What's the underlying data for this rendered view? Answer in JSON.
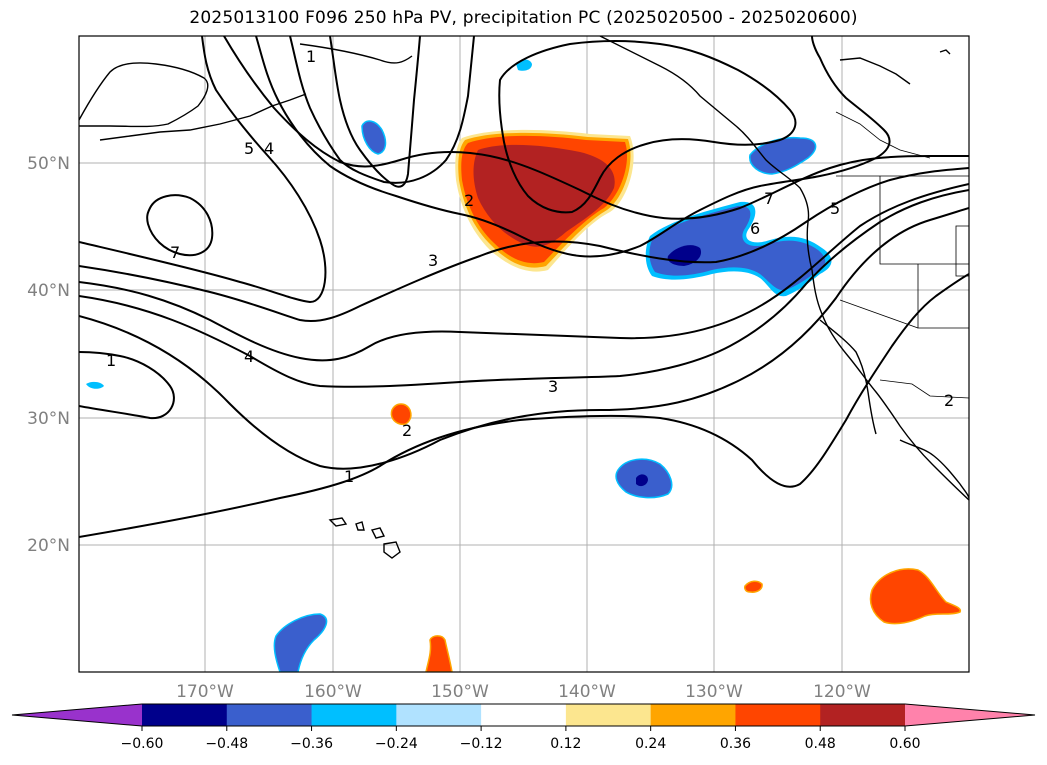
{
  "title": "2025013100 F096 250 hPa PV, precipitation PC (2025020500 - 2025020600)",
  "lat_labels": [
    "50°N",
    "40°N",
    "30°N",
    "20°N"
  ],
  "lon_labels": [
    "170°W",
    "160°W",
    "150°W",
    "140°W",
    "130°W",
    "120°W"
  ],
  "contour_labels": [
    "1",
    "5",
    "4",
    "7",
    "2",
    "3",
    "4",
    "1",
    "3",
    "2",
    "1",
    "7",
    "6",
    "5",
    "2"
  ],
  "colorbar": {
    "colors": [
      "#9932cc",
      "#00008b",
      "#3a5fcd",
      "#00bfff",
      "#b0e2ff",
      "#ffffff",
      "#fce68f",
      "#ffa500",
      "#ff4500",
      "#b22222",
      "#ff82ab"
    ],
    "tick_labels": [
      "−0.60",
      "−0.48",
      "−0.36",
      "−0.24",
      "−0.12",
      "0.12",
      "0.24",
      "0.36",
      "0.48",
      "0.60"
    ]
  }
}
